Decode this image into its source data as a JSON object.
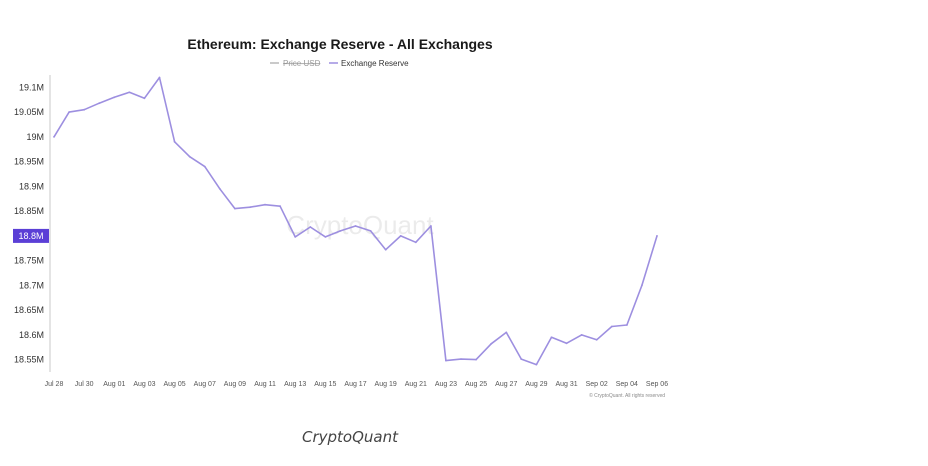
{
  "caption": "CryptoQuant",
  "chart_data": {
    "type": "line",
    "title": "Ethereum: Exchange Reserve - All Exchanges",
    "legend": [
      {
        "name": "Price USD",
        "color": "#b9b9b9",
        "struck": true
      },
      {
        "name": "Exchange Reserve",
        "color": "#9d8fe0",
        "struck": false
      }
    ],
    "legend_position": "top-center",
    "watermark": "CryptoQuant",
    "copyright": "© CryptoQuant. All rights reserved",
    "ylabel": "",
    "xlabel": "",
    "y_ticks": [
      {
        "value": 19.1,
        "label": "19.1M"
      },
      {
        "value": 19.05,
        "label": "19.05M"
      },
      {
        "value": 19.0,
        "label": "19M"
      },
      {
        "value": 18.95,
        "label": "18.95M"
      },
      {
        "value": 18.9,
        "label": "18.9M"
      },
      {
        "value": 18.85,
        "label": "18.85M"
      },
      {
        "value": 18.75,
        "label": "18.75M"
      },
      {
        "value": 18.7,
        "label": "18.7M"
      },
      {
        "value": 18.65,
        "label": "18.65M"
      },
      {
        "value": 18.6,
        "label": "18.6M"
      },
      {
        "value": 18.55,
        "label": "18.55M"
      }
    ],
    "current_value": {
      "value": 18.8,
      "label": "18.8M",
      "color": "#5b3fd6"
    },
    "ylim": [
      18.525,
      19.125
    ],
    "x_ticks": [
      "Jul 28",
      "Jul 30",
      "Aug 01",
      "Aug 03",
      "Aug 05",
      "Aug 07",
      "Aug 09",
      "Aug 11",
      "Aug 13",
      "Aug 15",
      "Aug 17",
      "Aug 19",
      "Aug 21",
      "Aug 23",
      "Aug 25",
      "Aug 27",
      "Aug 29",
      "Aug 31",
      "Sep 02",
      "Sep 04",
      "Sep 06"
    ],
    "x_range_days": [
      0,
      40
    ],
    "grid": false,
    "series": [
      {
        "name": "Exchange Reserve",
        "color": "#9d8fe0",
        "x": [
          "Jul 28",
          "Jul 29",
          "Jul 30",
          "Jul 31",
          "Aug 01",
          "Aug 02",
          "Aug 03",
          "Aug 04",
          "Aug 05",
          "Aug 06",
          "Aug 07",
          "Aug 08",
          "Aug 09",
          "Aug 10",
          "Aug 11",
          "Aug 12",
          "Aug 13",
          "Aug 14",
          "Aug 15",
          "Aug 16",
          "Aug 17",
          "Aug 18",
          "Aug 19",
          "Aug 20",
          "Aug 21",
          "Aug 22",
          "Aug 23",
          "Aug 24",
          "Aug 25",
          "Aug 26",
          "Aug 27",
          "Aug 28",
          "Aug 29",
          "Aug 30",
          "Aug 31",
          "Sep 01",
          "Sep 02",
          "Sep 03",
          "Sep 04",
          "Sep 05",
          "Sep 06"
        ],
        "values": [
          19.0,
          19.05,
          19.055,
          19.068,
          19.08,
          19.09,
          19.078,
          19.12,
          18.99,
          18.96,
          18.94,
          18.895,
          18.855,
          18.858,
          18.863,
          18.86,
          18.798,
          18.818,
          18.798,
          18.81,
          18.82,
          18.81,
          18.772,
          18.8,
          18.787,
          18.82,
          18.548,
          18.551,
          18.55,
          18.582,
          18.605,
          18.551,
          18.54,
          18.595,
          18.583,
          18.6,
          18.59,
          18.617,
          18.62,
          18.7,
          18.8
        ]
      }
    ]
  }
}
